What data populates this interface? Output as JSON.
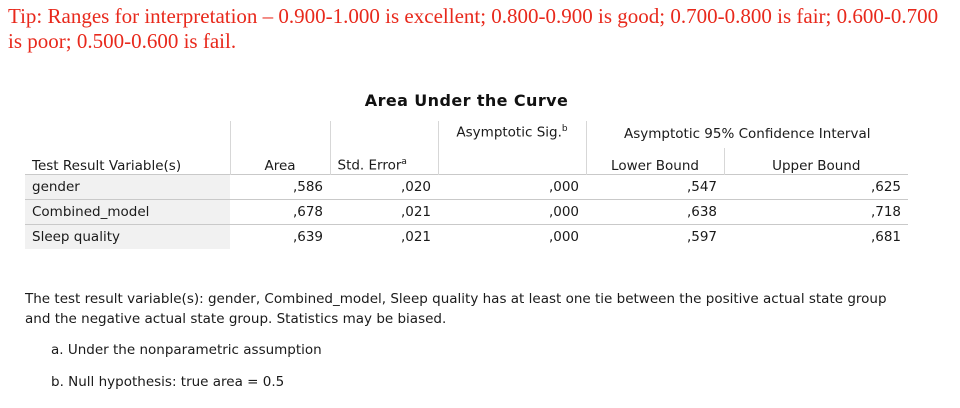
{
  "tip": "Tip: Ranges for interpretation – 0.900-1.000 is excellent; 0.800-0.900 is good; 0.700-0.800 is fair; 0.600-0.700 is poor; 0.500-0.600 is fail.",
  "table": {
    "title": "Area Under the Curve",
    "headers": {
      "test_result_variable": "Test Result Variable(s)",
      "area": "Area",
      "std_error": "Std. Error",
      "std_error_note": "a",
      "asym_sig": "Asymptotic Sig.",
      "asym_sig_note": "b",
      "ci_group": "Asymptotic 95% Confidence Interval",
      "lower_bound": "Lower Bound",
      "upper_bound": "Upper Bound"
    },
    "rows": [
      {
        "variable": "gender",
        "area": ",586",
        "std_error": ",020",
        "sig": ",000",
        "lower": ",547",
        "upper": ",625"
      },
      {
        "variable": "Combined_model",
        "area": ",678",
        "std_error": ",021",
        "sig": ",000",
        "lower": ",638",
        "upper": ",718"
      },
      {
        "variable": "Sleep quality",
        "area": ",639",
        "std_error": ",021",
        "sig": ",000",
        "lower": ",597",
        "upper": ",681"
      }
    ],
    "footer": "The test result variable(s): gender, Combined_model, Sleep quality has at least one tie between the positive actual state group and the negative actual state group. Statistics may be biased.",
    "footnote_a": "a. Under the nonparametric assumption",
    "footnote_b": "b. Null hypothesis: true area = 0.5"
  }
}
